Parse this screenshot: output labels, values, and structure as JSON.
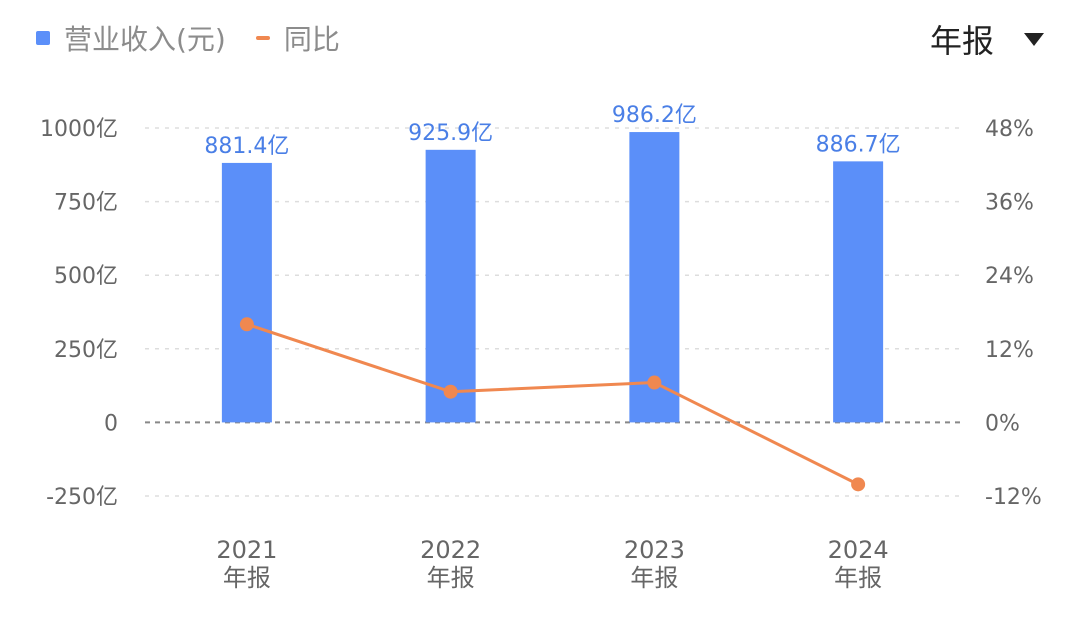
{
  "legend": {
    "bar_label": "营业收入(元)",
    "line_label": "同比"
  },
  "period_selector": {
    "label": "年报",
    "icon": "caret-down-icon"
  },
  "colors": {
    "bar": "#5B8FF9",
    "line": "#F08850",
    "label": "#4A7FE6",
    "axis_text": "#666666",
    "grid": "#dddddd"
  },
  "chart_data": {
    "type": "bar",
    "categories": [
      [
        "2021",
        "年报"
      ],
      [
        "2022",
        "年报"
      ],
      [
        "2023",
        "年报"
      ],
      [
        "2024",
        "年报"
      ]
    ],
    "series": [
      {
        "name": "营业收入(元)",
        "type": "bar",
        "axis": "left",
        "values": [
          881.4,
          925.9,
          986.2,
          886.7
        ],
        "labels": [
          "881.4亿",
          "925.9亿",
          "986.2亿",
          "886.7亿"
        ]
      },
      {
        "name": "同比",
        "type": "line",
        "axis": "right",
        "values": [
          16.0,
          5.0,
          6.5,
          -10.1
        ]
      }
    ],
    "y_left": {
      "ticks": [
        1000,
        750,
        500,
        250,
        0,
        -250
      ],
      "tick_labels": [
        "1000亿",
        "750亿",
        "500亿",
        "250亿",
        "0",
        "-250亿"
      ],
      "range": [
        -250,
        1000
      ]
    },
    "y_right": {
      "ticks": [
        48,
        36,
        24,
        12,
        0,
        -12
      ],
      "tick_labels": [
        "48%",
        "36%",
        "24%",
        "12%",
        "0%",
        "-12%"
      ],
      "range": [
        -12,
        48
      ]
    },
    "grid": true,
    "legend_position": "top-left"
  }
}
